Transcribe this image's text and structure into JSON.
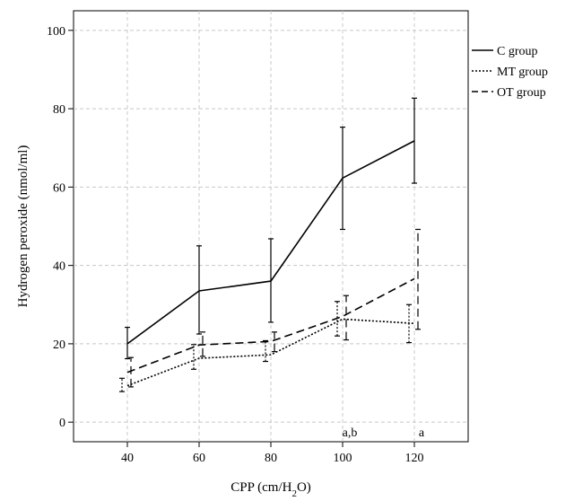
{
  "chart_data": {
    "type": "line",
    "xlabel": "CPP (cm/H2O)",
    "xlabel_parts": {
      "base": "CPP (cm/H",
      "sub": "2",
      "tail": "O)"
    },
    "ylabel": "Hydrogen peroxide (nmol/ml)",
    "x": [
      40,
      60,
      80,
      100,
      120
    ],
    "x_ticks": [
      "40",
      "60",
      "80",
      "100",
      "120"
    ],
    "y_ticks": [
      "0",
      "20",
      "40",
      "60",
      "80",
      "100"
    ],
    "xlim": [
      25,
      135
    ],
    "ylim": [
      -5,
      105
    ],
    "grid": true,
    "legend_position": "right",
    "series": [
      {
        "name": "C group",
        "style": "solid",
        "values": [
          20,
          33.5,
          36,
          62.3,
          71.8
        ],
        "err_low": [
          16.2,
          22.5,
          25.5,
          49.2,
          61
        ],
        "err_high": [
          24.2,
          45,
          46.8,
          75.3,
          82.7
        ]
      },
      {
        "name": "MT group",
        "style": "dotted",
        "values": [
          9.3,
          16.3,
          17.2,
          26.3,
          25.2
        ],
        "err_low": [
          7.8,
          13.5,
          15.5,
          22,
          20.3
        ],
        "err_high": [
          11.2,
          19.8,
          20.8,
          30.8,
          30
        ]
      },
      {
        "name": "OT group",
        "style": "dashed",
        "values": [
          12.7,
          19.7,
          20.6,
          27,
          36.6
        ],
        "err_low": [
          9,
          16.8,
          18,
          21,
          23.7
        ],
        "err_high": [
          16.5,
          23,
          23,
          32.3,
          49.2
        ]
      }
    ],
    "annotations": [
      {
        "x": 100,
        "text": "a,b"
      },
      {
        "x": 120,
        "text": "a"
      }
    ]
  }
}
